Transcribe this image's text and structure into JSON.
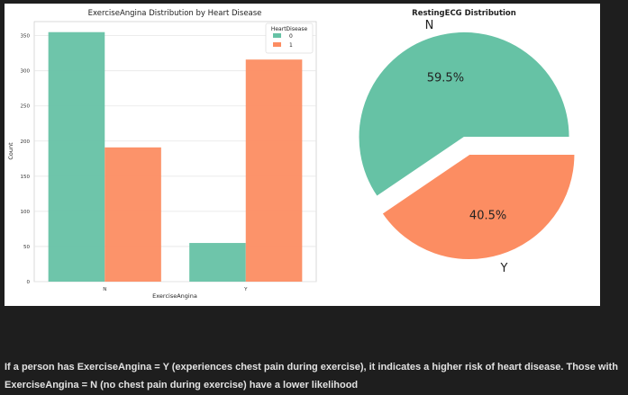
{
  "chart_data": [
    {
      "type": "bar",
      "title": "ExerciseAngina Distribution by Heart Disease",
      "xlabel": "ExerciseAngina",
      "ylabel": "Count",
      "categories": [
        "N",
        "Y"
      ],
      "series": [
        {
          "name": "0",
          "values": [
            355,
            55
          ],
          "color": "#66c2a5"
        },
        {
          "name": "1",
          "values": [
            191,
            316
          ],
          "color": "#fc8d62"
        }
      ],
      "ylim": [
        0,
        370
      ],
      "yticks": [
        0,
        50,
        100,
        150,
        200,
        250,
        300,
        350
      ],
      "legend": {
        "title": "HeartDisease",
        "placement": "top-right"
      },
      "grid": "horizontal"
    },
    {
      "type": "pie",
      "title": "RestingECG Distribution",
      "labels": [
        "N",
        "Y"
      ],
      "values": [
        59.5,
        40.5
      ],
      "value_labels": [
        "59.5%",
        "40.5%"
      ],
      "colors": [
        "#66c2a5",
        "#fc8d62"
      ],
      "exploded": true
    }
  ],
  "caption": {
    "text": "If a person has ExerciseAngina = Y (experiences chest pain during exercise), it indicates a higher risk of heart disease. Those with ExerciseAngina = N (no chest pain during exercise) have a lower likelihood"
  }
}
